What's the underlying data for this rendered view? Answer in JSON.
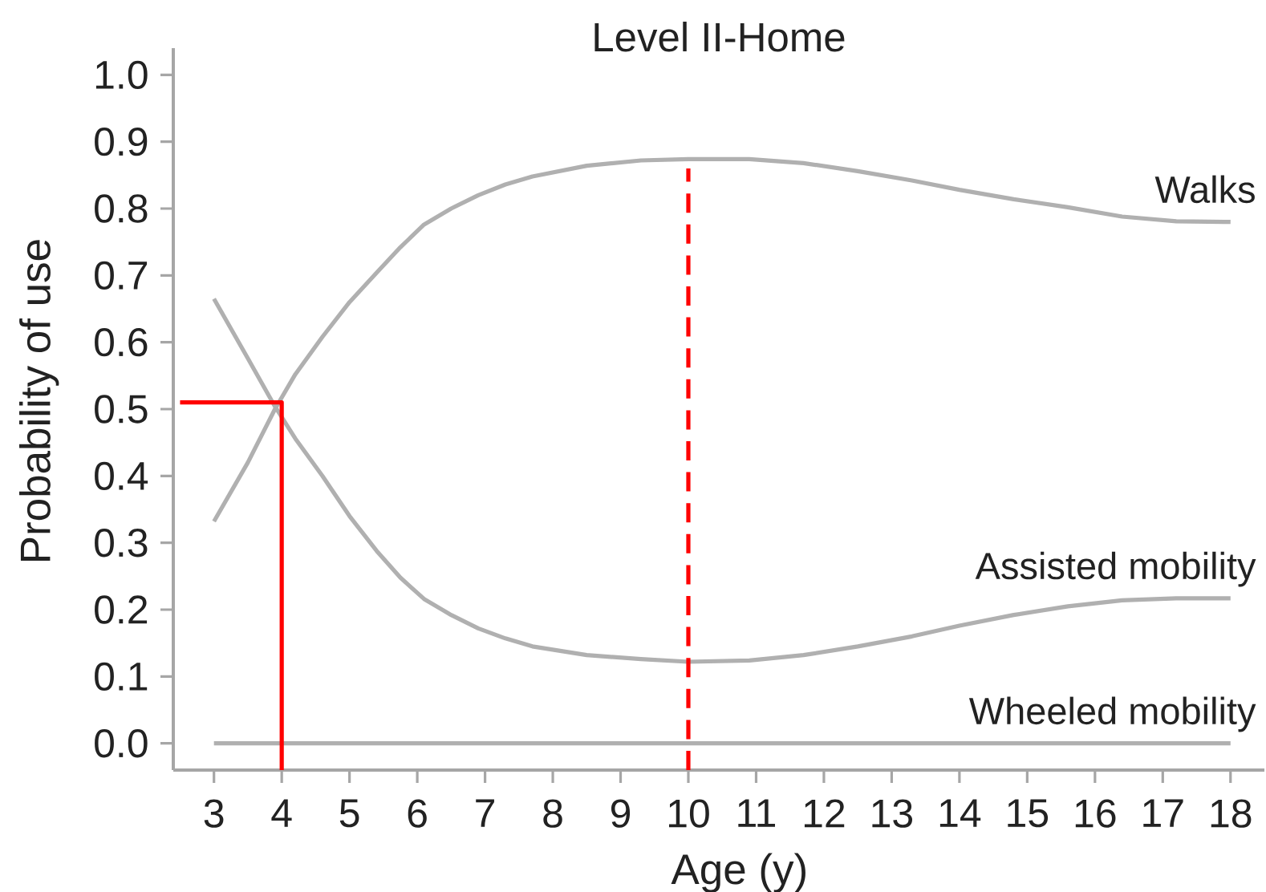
{
  "chart_data": {
    "type": "line",
    "title": "Level II-Home",
    "xlabel": "Age (y)",
    "ylabel": "Probability of use",
    "xlim": [
      2.4,
      18.5
    ],
    "ylim": [
      -0.04,
      1.04
    ],
    "xticks": [
      3,
      4,
      5,
      6,
      7,
      8,
      9,
      10,
      11,
      12,
      13,
      14,
      15,
      16,
      17,
      18
    ],
    "yticks": [
      {
        "value": 0,
        "label": "0.0"
      },
      0.1,
      0.2,
      0.3,
      0.4,
      0.5,
      0.6,
      0.7,
      0.8,
      0.9,
      {
        "value": 1,
        "label": "1.0"
      }
    ],
    "marker": "none",
    "series": [
      {
        "name": "Walks",
        "color": "#b0b0b0",
        "x": [
          3,
          3.5,
          3.9,
          4.2,
          4.6,
          5,
          5.4,
          5.75,
          6.1,
          6.5,
          6.9,
          7.3,
          7.7,
          8.5,
          9.3,
          10,
          10.9,
          11.7,
          12.5,
          13.3,
          14,
          14.8,
          15.6,
          16.4,
          17.2,
          18
        ],
        "values": [
          0.332,
          0.42,
          0.5,
          0.552,
          0.608,
          0.66,
          0.704,
          0.742,
          0.776,
          0.8,
          0.82,
          0.836,
          0.848,
          0.864,
          0.872,
          0.874,
          0.874,
          0.868,
          0.856,
          0.842,
          0.828,
          0.814,
          0.802,
          0.788,
          0.781,
          0.78
        ]
      },
      {
        "name": "Assisted mobility",
        "color": "#b0b0b0",
        "x": [
          3,
          3.5,
          3.9,
          4.2,
          4.6,
          5,
          5.4,
          5.75,
          6.1,
          6.5,
          6.9,
          7.3,
          7.7,
          8.5,
          9.3,
          10,
          10.9,
          11.7,
          12.5,
          13.3,
          14,
          14.8,
          15.6,
          16.4,
          17.2,
          18
        ],
        "values": [
          0.665,
          0.576,
          0.504,
          0.456,
          0.4,
          0.34,
          0.288,
          0.248,
          0.216,
          0.192,
          0.172,
          0.157,
          0.145,
          0.132,
          0.126,
          0.122,
          0.124,
          0.132,
          0.145,
          0.16,
          0.176,
          0.192,
          0.205,
          0.214,
          0.217,
          0.217
        ]
      },
      {
        "name": "Wheeled mobility",
        "color": "#b0b0b0",
        "x": [
          3,
          8,
          13,
          18
        ],
        "values": [
          0,
          0,
          0,
          0
        ]
      },
      {
        "color": "#ff0000",
        "x": [
          2.5,
          4,
          4
        ],
        "values": [
          0.51,
          0.51,
          -0.04
        ]
      },
      {
        "color": "#ff0000",
        "line_style": "dashed",
        "x": [
          10,
          10
        ],
        "values": [
          -0.04,
          0.86
        ]
      }
    ]
  }
}
